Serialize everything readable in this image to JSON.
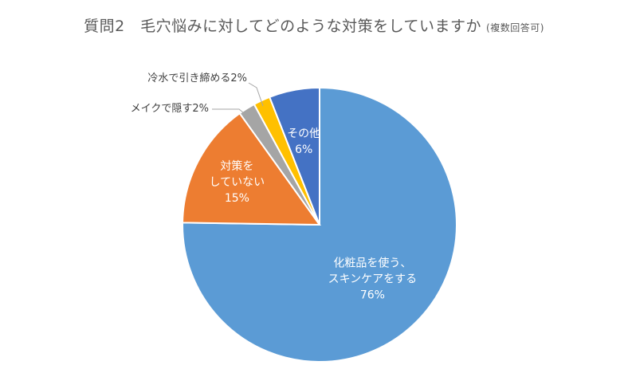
{
  "title": {
    "main": "質問2　毛穴悩みに対してどのような対策をしていますか",
    "note": "(複数回答可)"
  },
  "chart_data": {
    "type": "pie",
    "title": "質問2　毛穴悩みに対してどのような対策をしていますか (複数回答可)",
    "slices": [
      {
        "label_lines": [
          "化粧品を使う、",
          "スキンケアをする"
        ],
        "value": 76,
        "value_text": "76%",
        "color": "#5B9BD5",
        "label_pos": "inside"
      },
      {
        "label_lines": [
          "対策を",
          "していない"
        ],
        "value": 15,
        "value_text": "15%",
        "color": "#ED7D31",
        "label_pos": "inside"
      },
      {
        "label_lines": [
          "メイクで隠す"
        ],
        "value": 2,
        "value_text": "2%",
        "color": "#A5A5A5",
        "label_pos": "outside"
      },
      {
        "label_lines": [
          "冷水で引き締める"
        ],
        "value": 2,
        "value_text": "2%",
        "color": "#FFC000",
        "label_pos": "outside"
      },
      {
        "label_lines": [
          "その他"
        ],
        "value": 6,
        "value_text": "6%",
        "color": "#4472C4",
        "label_pos": "inside"
      }
    ],
    "start": "12 o'clock",
    "direction": "clockwise",
    "legend": "none"
  }
}
